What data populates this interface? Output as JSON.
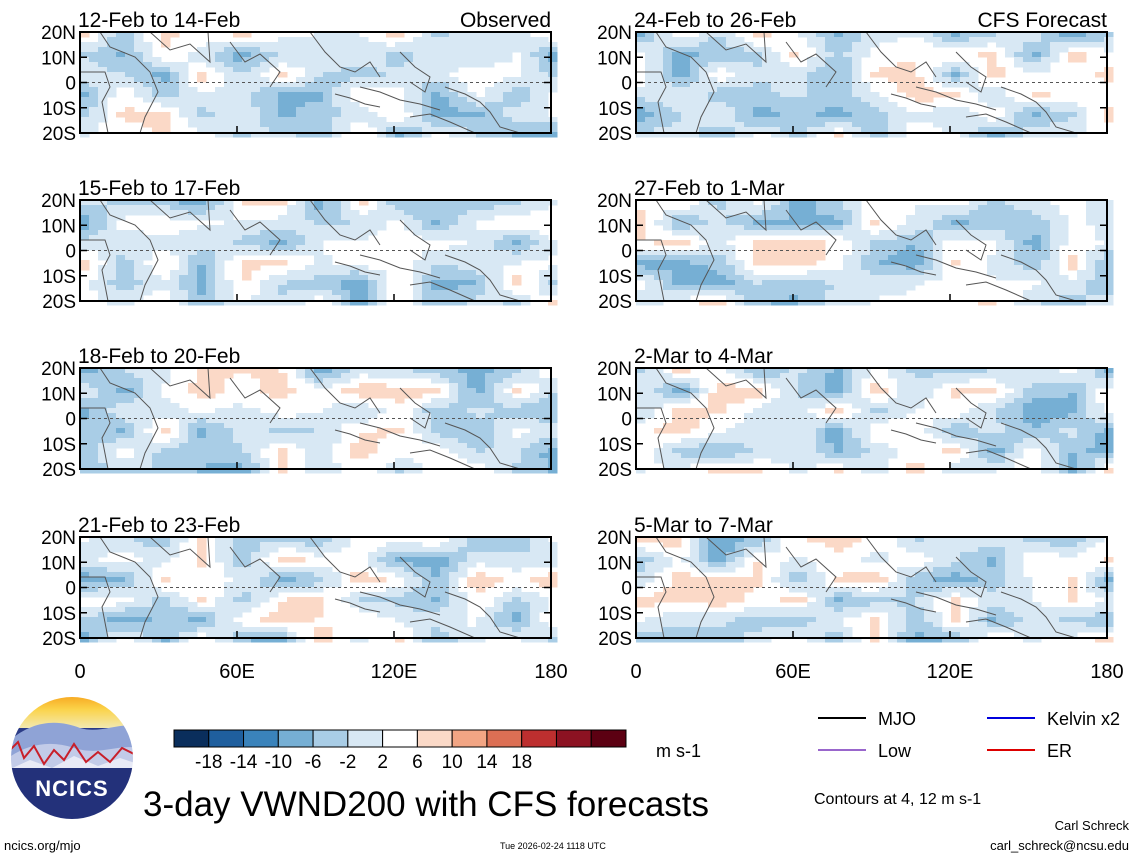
{
  "main_title": "3-day VWND200 with CFS forecasts",
  "footer": {
    "site": "ncics.org/mjo",
    "timestamp": "Tue 2026-02-24 1118 UTC",
    "author": "Carl Schreck",
    "email": "carl_schreck@ncsu.edu"
  },
  "logo": {
    "text": "NCICS"
  },
  "colorbar": {
    "levels": [
      -18,
      -14,
      -10,
      -6,
      -2,
      2,
      6,
      10,
      14,
      18
    ],
    "tick_labels": [
      "-18",
      "-14",
      "-10",
      "-6",
      "-2",
      "2",
      "6",
      "10",
      "14",
      "18"
    ],
    "colors": [
      "#0a2e5c",
      "#1f5f9e",
      "#3a83bb",
      "#76afd4",
      "#a9cde6",
      "#d8e8f4",
      "#ffffff",
      "#fbd9c7",
      "#f2a584",
      "#dc6f54",
      "#bd2f2f",
      "#8c1222",
      "#5c0012"
    ],
    "units": "m s-1"
  },
  "legend": {
    "contour_note": "Contours at 4, 12 m s-1",
    "items": [
      {
        "label": "MJO",
        "color": "#000000"
      },
      {
        "label": "Kelvin x2",
        "color": "#0000dd"
      },
      {
        "label": "Low",
        "color": "#9966cc"
      },
      {
        "label": "ER",
        "color": "#dd0000"
      }
    ]
  },
  "chart_data": [
    {
      "type": "heatmap",
      "variable": "200-hPa meridional wind anomaly",
      "period": "12-Feb to 14-Feb",
      "source": "Observed",
      "xlabel": "",
      "ylabel": "",
      "xlim": [
        0,
        180
      ],
      "ylim": [
        -20,
        20
      ],
      "xticks": [
        "0",
        "60E",
        "120E",
        "180"
      ],
      "yticks": [
        "20N",
        "10N",
        "0",
        "10S",
        "20S"
      ]
    },
    {
      "type": "heatmap",
      "variable": "200-hPa meridional wind anomaly",
      "period": "24-Feb to 26-Feb",
      "source": "CFS Forecast",
      "xlabel": "",
      "ylabel": "",
      "xlim": [
        0,
        180
      ],
      "ylim": [
        -20,
        20
      ],
      "xticks": [
        "0",
        "60E",
        "120E",
        "180"
      ],
      "yticks": [
        "20N",
        "10N",
        "0",
        "10S",
        "20S"
      ]
    },
    {
      "type": "heatmap",
      "variable": "200-hPa meridional wind anomaly",
      "period": "15-Feb to 17-Feb",
      "source": "",
      "xlabel": "",
      "ylabel": "",
      "xlim": [
        0,
        180
      ],
      "ylim": [
        -20,
        20
      ],
      "xticks": [
        "0",
        "60E",
        "120E",
        "180"
      ],
      "yticks": [
        "20N",
        "10N",
        "0",
        "10S",
        "20S"
      ]
    },
    {
      "type": "heatmap",
      "variable": "200-hPa meridional wind anomaly",
      "period": "27-Feb to 1-Mar",
      "source": "",
      "xlabel": "",
      "ylabel": "",
      "xlim": [
        0,
        180
      ],
      "ylim": [
        -20,
        20
      ],
      "xticks": [
        "0",
        "60E",
        "120E",
        "180"
      ],
      "yticks": [
        "20N",
        "10N",
        "0",
        "10S",
        "20S"
      ]
    },
    {
      "type": "heatmap",
      "variable": "200-hPa meridional wind anomaly",
      "period": "18-Feb to 20-Feb",
      "source": "",
      "xlabel": "",
      "ylabel": "",
      "xlim": [
        0,
        180
      ],
      "ylim": [
        -20,
        20
      ],
      "xticks": [
        "0",
        "60E",
        "120E",
        "180"
      ],
      "yticks": [
        "20N",
        "10N",
        "0",
        "10S",
        "20S"
      ]
    },
    {
      "type": "heatmap",
      "variable": "200-hPa meridional wind anomaly",
      "period": "2-Mar to 4-Mar",
      "source": "",
      "xlabel": "",
      "ylabel": "",
      "xlim": [
        0,
        180
      ],
      "ylim": [
        -20,
        20
      ],
      "xticks": [
        "0",
        "60E",
        "120E",
        "180"
      ],
      "yticks": [
        "20N",
        "10N",
        "0",
        "10S",
        "20S"
      ]
    },
    {
      "type": "heatmap",
      "variable": "200-hPa meridional wind anomaly",
      "period": "21-Feb to 23-Feb",
      "source": "",
      "xlabel": "",
      "ylabel": "",
      "xlim": [
        0,
        180
      ],
      "ylim": [
        -20,
        20
      ],
      "xticks": [
        "0",
        "60E",
        "120E",
        "180"
      ],
      "yticks": [
        "20N",
        "10N",
        "0",
        "10S",
        "20S"
      ]
    },
    {
      "type": "heatmap",
      "variable": "200-hPa meridional wind anomaly",
      "period": "5-Mar to 7-Mar",
      "source": "",
      "xlabel": "",
      "ylabel": "",
      "xlim": [
        0,
        180
      ],
      "ylim": [
        -20,
        20
      ],
      "xticks": [
        "0",
        "60E",
        "120E",
        "180"
      ],
      "yticks": [
        "20N",
        "10N",
        "0",
        "10S",
        "20S"
      ]
    }
  ]
}
